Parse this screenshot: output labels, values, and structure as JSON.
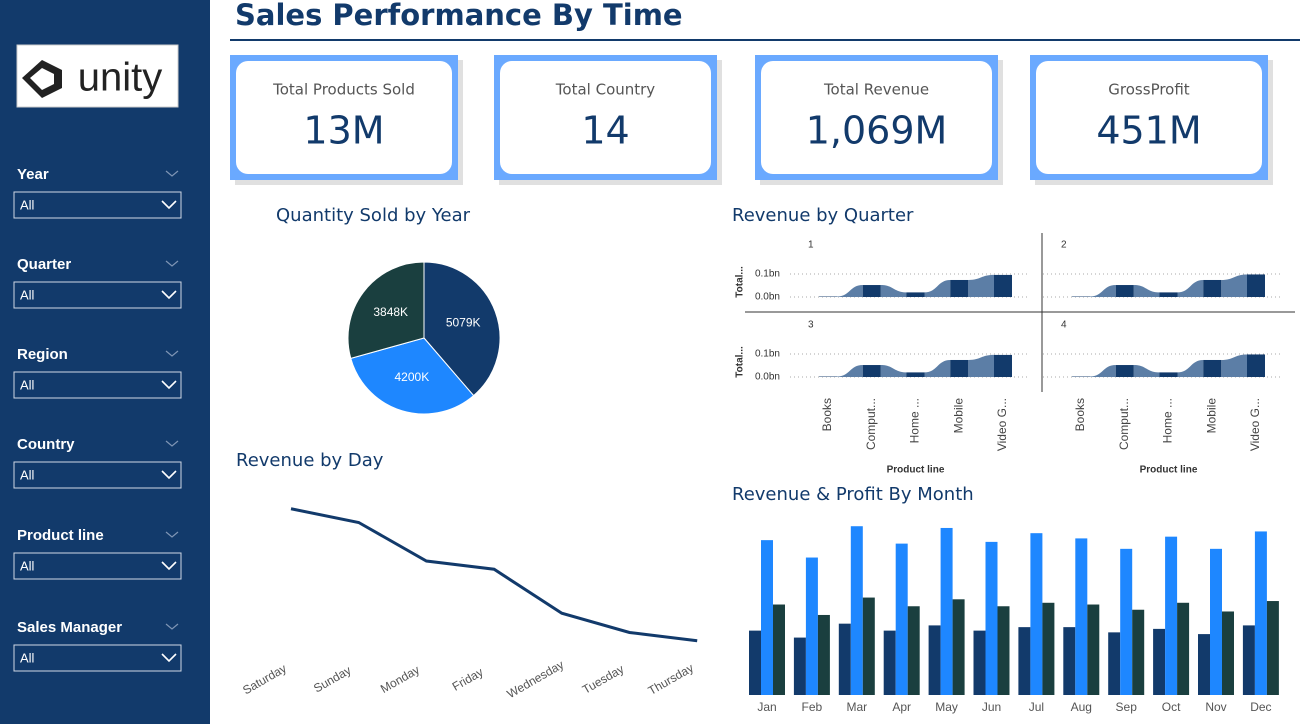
{
  "header": {
    "title": "Sales Performance By Time"
  },
  "sidebar": {
    "logo": "unity",
    "filters": [
      {
        "label": "Year",
        "value": "All"
      },
      {
        "label": "Quarter",
        "value": "All"
      },
      {
        "label": "Region",
        "value": "All"
      },
      {
        "label": "Country",
        "value": "All"
      },
      {
        "label": "Product line",
        "value": "All"
      },
      {
        "label": "Sales Manager",
        "value": "All"
      }
    ]
  },
  "kpis": [
    {
      "label": "Total Products Sold",
      "value": "13M"
    },
    {
      "label": "Total Country",
      "value": "14"
    },
    {
      "label": "Total Revenue",
      "value": "1,069M"
    },
    {
      "label": "GrossProfit",
      "value": "451M"
    }
  ],
  "chart_data": [
    {
      "type": "pie",
      "title": "Quantity Sold by Year",
      "values": [
        5079,
        4200,
        3848
      ],
      "value_labels": [
        "5079K",
        "4200K",
        "3848K"
      ],
      "colors": [
        "#123a6b",
        "#1e87ff",
        "#1a3f3f"
      ]
    },
    {
      "type": "ribbon",
      "title": "Revenue by Quarter",
      "ylabel": "Total...",
      "xlabel": "Product line",
      "categories": [
        "Books",
        "Comput...",
        "Home ...",
        "Mobile",
        "Video G..."
      ],
      "panels": [
        {
          "title": "1",
          "values": [
            0.002,
            0.052,
            0.02,
            0.074,
            0.096
          ]
        },
        {
          "title": "2",
          "values": [
            0.002,
            0.052,
            0.02,
            0.074,
            0.098
          ]
        },
        {
          "title": "3",
          "values": [
            0.002,
            0.052,
            0.02,
            0.074,
            0.096
          ]
        },
        {
          "title": "4",
          "values": [
            0.002,
            0.052,
            0.02,
            0.074,
            0.098
          ]
        }
      ],
      "ylim": [
        0,
        0.14
      ],
      "yticks": [
        {
          "value": 0,
          "label": "0.0bn"
        },
        {
          "value": 0.1,
          "label": "0.1bn"
        }
      ],
      "color": "#123a6b",
      "ribbon_color": "#5c7ea6"
    },
    {
      "type": "line",
      "title": "Revenue by Day",
      "categories": [
        "Saturday",
        "Sunday",
        "Monday",
        "Friday",
        "Wednesday",
        "Tuesday",
        "Thursday"
      ],
      "values": [
        165,
        160,
        146,
        143,
        127,
        120,
        117
      ],
      "ylim": [
        110,
        170
      ],
      "color": "#123a6b"
    },
    {
      "type": "bar",
      "title": "Revenue & Profit By Month",
      "categories": [
        "Jan",
        "Feb",
        "Mar",
        "Apr",
        "May",
        "Jun",
        "Jul",
        "Aug",
        "Sep",
        "Oct",
        "Nov",
        "Dec"
      ],
      "series": [
        {
          "color": "#123a6b",
          "values": [
            37,
            33,
            41,
            37,
            40,
            37,
            39,
            39,
            36,
            38,
            35,
            40
          ]
        },
        {
          "color": "#1e87ff",
          "values": [
            89,
            79,
            97,
            87,
            96,
            88,
            93,
            90,
            84,
            91,
            84,
            94
          ]
        },
        {
          "color": "#1a3f3f",
          "values": [
            52,
            46,
            56,
            51,
            55,
            51,
            53,
            52,
            49,
            53,
            48,
            54
          ]
        }
      ],
      "ylim": [
        0,
        100
      ]
    }
  ]
}
